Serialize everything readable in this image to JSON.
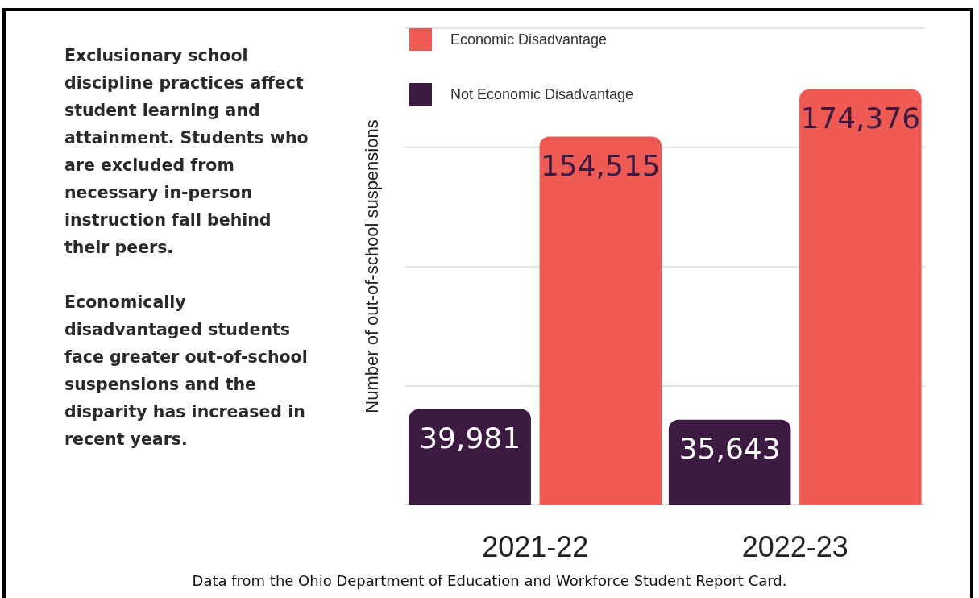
{
  "chart_data": {
    "type": "bar",
    "ylabel": "Number of out-of-school suspensions",
    "categories": [
      "2021-22",
      "2022-23"
    ],
    "series": [
      {
        "name": "Not Economic Disadvantage",
        "color": "#3d1a42",
        "values": [
          39981,
          35643
        ],
        "value_labels": [
          "39,981",
          "35,643"
        ]
      },
      {
        "name": "Economic Disadvantage",
        "color": "#f05a55",
        "values": [
          154515,
          174376
        ],
        "value_labels": [
          "154,515",
          "174,376"
        ]
      }
    ],
    "ylim": [
      0,
      200000
    ],
    "yticks": [
      {
        "value": 0,
        "label": null
      },
      {
        "value": 50000,
        "label": null
      },
      {
        "value": 100000,
        "label": null
      },
      {
        "value": 150000,
        "label": null
      },
      {
        "value": 200000,
        "label": null
      }
    ],
    "grid": "y",
    "legend": "top left",
    "tick_labels": "x",
    "annotations": [
      "Exclusionary school discipline practices affect student learning and attainment. Students who are excluded from necessary in-person instruction fall behind their peers.",
      "Economically disadvantaged students face greater out-of-school suspensions and the disparity has increased in recent years.",
      "Data from the Ohio Department of Education and Workforce Student Report Card."
    ]
  }
}
